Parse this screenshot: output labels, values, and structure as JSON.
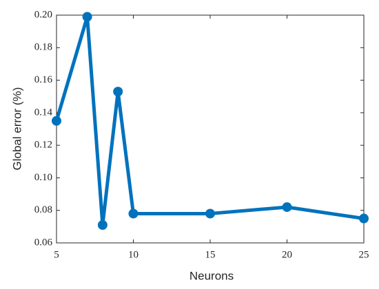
{
  "chart_data": {
    "type": "line",
    "xlabel": "Neurons",
    "ylabel": "Global error (%)",
    "x": [
      5,
      7,
      8,
      9,
      10,
      15,
      20,
      25
    ],
    "series": [
      {
        "color": "#0072bd",
        "values": [
          0.135,
          0.199,
          0.071,
          0.153,
          0.078,
          0.078,
          0.082,
          0.075
        ]
      }
    ],
    "xlim": [
      5,
      25
    ],
    "xticks": [
      5,
      10,
      15,
      20,
      25
    ],
    "ylim": [
      0.06,
      0.2
    ],
    "yticks": [
      0.06,
      0.08,
      {
        "value": 0.1,
        "label": "0.10"
      },
      0.12,
      0.14,
      0.16,
      0.18,
      {
        "value": 0.2,
        "label": "0.20"
      }
    ],
    "grid": false,
    "markers": true
  }
}
